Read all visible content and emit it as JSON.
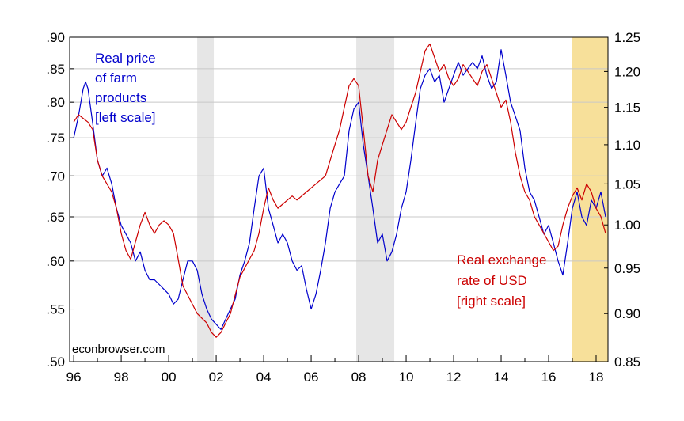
{
  "chart_data": {
    "type": "line",
    "watermark": "econbrowser.com",
    "annotations": {
      "left_series_label": [
        "Real price",
        "of farm",
        "products",
        "[left scale]"
      ],
      "right_series_label": [
        "Real exchange",
        "rate of USD",
        "[right scale]"
      ]
    },
    "x_ticks": [
      "96",
      "98",
      "00",
      "02",
      "04",
      "06",
      "08",
      "10",
      "12",
      "14",
      "16",
      "18"
    ],
    "x_range": [
      1995.83,
      2018.5
    ],
    "y_left": {
      "scale": "log",
      "range": [
        0.5,
        0.9
      ],
      "ticks": [
        0.9,
        0.85,
        0.8,
        0.75,
        0.7,
        0.65,
        0.6,
        0.55,
        0.5
      ],
      "tick_labels": [
        ".90",
        ".85",
        ".80",
        ".75",
        ".70",
        ".65",
        ".60",
        ".55",
        ".50"
      ]
    },
    "y_right": {
      "scale": "log",
      "range": [
        0.85,
        1.25
      ],
      "ticks": [
        1.25,
        1.2,
        1.15,
        1.1,
        1.05,
        1.0,
        0.95,
        0.9,
        0.85
      ],
      "tick_labels": [
        "1.25",
        "1.20",
        "1.15",
        "1.10",
        "1.05",
        "1.00",
        "0.95",
        "0.90",
        "0.85"
      ]
    },
    "shaded_periods": [
      {
        "start": 2001.2,
        "end": 2001.9,
        "color": "#e6e6e6"
      },
      {
        "start": 2007.9,
        "end": 2009.5,
        "color": "#e6e6e6"
      },
      {
        "start": 2017.0,
        "end": 2018.5,
        "color": "#f7e09a"
      }
    ],
    "series": [
      {
        "axis": "left",
        "color": "#0000cc",
        "x": [
          1996.0,
          1996.2,
          1996.4,
          1996.5,
          1996.6,
          1996.8,
          1997.0,
          1997.2,
          1997.4,
          1997.6,
          1997.8,
          1998.0,
          1998.2,
          1998.4,
          1998.6,
          1998.8,
          1999.0,
          1999.2,
          1999.4,
          1999.6,
          1999.8,
          2000.0,
          2000.2,
          2000.4,
          2000.6,
          2000.8,
          2001.0,
          2001.2,
          2001.4,
          2001.6,
          2001.8,
          2002.0,
          2002.2,
          2002.4,
          2002.6,
          2002.8,
          2003.0,
          2003.2,
          2003.4,
          2003.6,
          2003.8,
          2004.0,
          2004.2,
          2004.4,
          2004.6,
          2004.8,
          2005.0,
          2005.2,
          2005.4,
          2005.6,
          2005.8,
          2006.0,
          2006.2,
          2006.4,
          2006.6,
          2006.8,
          2007.0,
          2007.2,
          2007.4,
          2007.6,
          2007.8,
          2008.0,
          2008.2,
          2008.4,
          2008.6,
          2008.8,
          2009.0,
          2009.2,
          2009.4,
          2009.6,
          2009.8,
          2010.0,
          2010.2,
          2010.4,
          2010.6,
          2010.8,
          2011.0,
          2011.2,
          2011.4,
          2011.6,
          2011.8,
          2012.0,
          2012.2,
          2012.4,
          2012.6,
          2012.8,
          2013.0,
          2013.2,
          2013.4,
          2013.6,
          2013.8,
          2014.0,
          2014.2,
          2014.4,
          2014.6,
          2014.8,
          2015.0,
          2015.2,
          2015.4,
          2015.6,
          2015.8,
          2016.0,
          2016.2,
          2016.4,
          2016.6,
          2016.8,
          2017.0,
          2017.2,
          2017.4,
          2017.6,
          2017.8,
          2018.0,
          2018.2,
          2018.4
        ],
        "values": [
          0.75,
          0.78,
          0.82,
          0.83,
          0.82,
          0.77,
          0.72,
          0.7,
          0.71,
          0.69,
          0.66,
          0.64,
          0.63,
          0.62,
          0.6,
          0.61,
          0.59,
          0.58,
          0.58,
          0.575,
          0.57,
          0.565,
          0.555,
          0.56,
          0.58,
          0.6,
          0.6,
          0.59,
          0.565,
          0.55,
          0.54,
          0.535,
          0.53,
          0.54,
          0.55,
          0.56,
          0.585,
          0.6,
          0.62,
          0.66,
          0.7,
          0.71,
          0.66,
          0.64,
          0.62,
          0.63,
          0.62,
          0.6,
          0.59,
          0.595,
          0.57,
          0.55,
          0.565,
          0.59,
          0.62,
          0.66,
          0.68,
          0.69,
          0.7,
          0.76,
          0.79,
          0.8,
          0.74,
          0.7,
          0.66,
          0.62,
          0.63,
          0.6,
          0.61,
          0.63,
          0.66,
          0.68,
          0.72,
          0.77,
          0.82,
          0.84,
          0.85,
          0.83,
          0.84,
          0.8,
          0.82,
          0.84,
          0.86,
          0.84,
          0.85,
          0.86,
          0.85,
          0.87,
          0.84,
          0.82,
          0.83,
          0.88,
          0.84,
          0.8,
          0.78,
          0.76,
          0.71,
          0.68,
          0.67,
          0.65,
          0.63,
          0.64,
          0.62,
          0.6,
          0.585,
          0.62,
          0.66,
          0.68,
          0.65,
          0.64,
          0.67,
          0.66,
          0.68,
          0.65
        ]
      },
      {
        "axis": "right",
        "color": "#cc0000",
        "x": [
          1996.0,
          1996.2,
          1996.4,
          1996.6,
          1996.8,
          1997.0,
          1997.2,
          1997.4,
          1997.6,
          1997.8,
          1998.0,
          1998.2,
          1998.4,
          1998.6,
          1998.8,
          1999.0,
          1999.2,
          1999.4,
          1999.6,
          1999.8,
          2000.0,
          2000.2,
          2000.4,
          2000.6,
          2000.8,
          2001.0,
          2001.2,
          2001.4,
          2001.6,
          2001.8,
          2002.0,
          2002.2,
          2002.4,
          2002.6,
          2002.8,
          2003.0,
          2003.2,
          2003.4,
          2003.6,
          2003.8,
          2004.0,
          2004.2,
          2004.4,
          2004.6,
          2004.8,
          2005.0,
          2005.2,
          2005.4,
          2005.6,
          2005.8,
          2006.0,
          2006.2,
          2006.4,
          2006.6,
          2006.8,
          2007.0,
          2007.2,
          2007.4,
          2007.6,
          2007.8,
          2008.0,
          2008.2,
          2008.4,
          2008.6,
          2008.8,
          2009.0,
          2009.2,
          2009.4,
          2009.6,
          2009.8,
          2010.0,
          2010.2,
          2010.4,
          2010.6,
          2010.8,
          2011.0,
          2011.2,
          2011.4,
          2011.6,
          2011.8,
          2012.0,
          2012.2,
          2012.4,
          2012.6,
          2012.8,
          2013.0,
          2013.2,
          2013.4,
          2013.6,
          2013.8,
          2014.0,
          2014.2,
          2014.4,
          2014.6,
          2014.8,
          2015.0,
          2015.2,
          2015.4,
          2015.6,
          2015.8,
          2016.0,
          2016.2,
          2016.4,
          2016.6,
          2016.8,
          2017.0,
          2017.2,
          2017.4,
          2017.6,
          2017.8,
          2018.0,
          2018.2,
          2018.4
        ],
        "values": [
          1.13,
          1.14,
          1.135,
          1.13,
          1.12,
          1.08,
          1.06,
          1.05,
          1.04,
          1.02,
          0.99,
          0.97,
          0.96,
          0.98,
          1.0,
          1.015,
          1.0,
          0.99,
          1.0,
          1.005,
          1.0,
          0.99,
          0.96,
          0.93,
          0.92,
          0.91,
          0.9,
          0.895,
          0.89,
          0.88,
          0.875,
          0.88,
          0.89,
          0.9,
          0.92,
          0.94,
          0.95,
          0.96,
          0.97,
          0.99,
          1.02,
          1.045,
          1.03,
          1.02,
          1.025,
          1.03,
          1.035,
          1.03,
          1.035,
          1.04,
          1.045,
          1.05,
          1.055,
          1.06,
          1.08,
          1.1,
          1.12,
          1.15,
          1.18,
          1.19,
          1.18,
          1.12,
          1.06,
          1.04,
          1.08,
          1.1,
          1.12,
          1.14,
          1.13,
          1.12,
          1.13,
          1.15,
          1.17,
          1.2,
          1.23,
          1.24,
          1.22,
          1.2,
          1.21,
          1.19,
          1.18,
          1.19,
          1.21,
          1.2,
          1.19,
          1.18,
          1.2,
          1.21,
          1.19,
          1.17,
          1.15,
          1.16,
          1.13,
          1.09,
          1.06,
          1.04,
          1.03,
          1.01,
          1.0,
          0.99,
          0.98,
          0.97,
          0.975,
          1.0,
          1.02,
          1.035,
          1.045,
          1.03,
          1.05,
          1.04,
          1.02,
          1.01,
          0.99
        ]
      }
    ]
  }
}
